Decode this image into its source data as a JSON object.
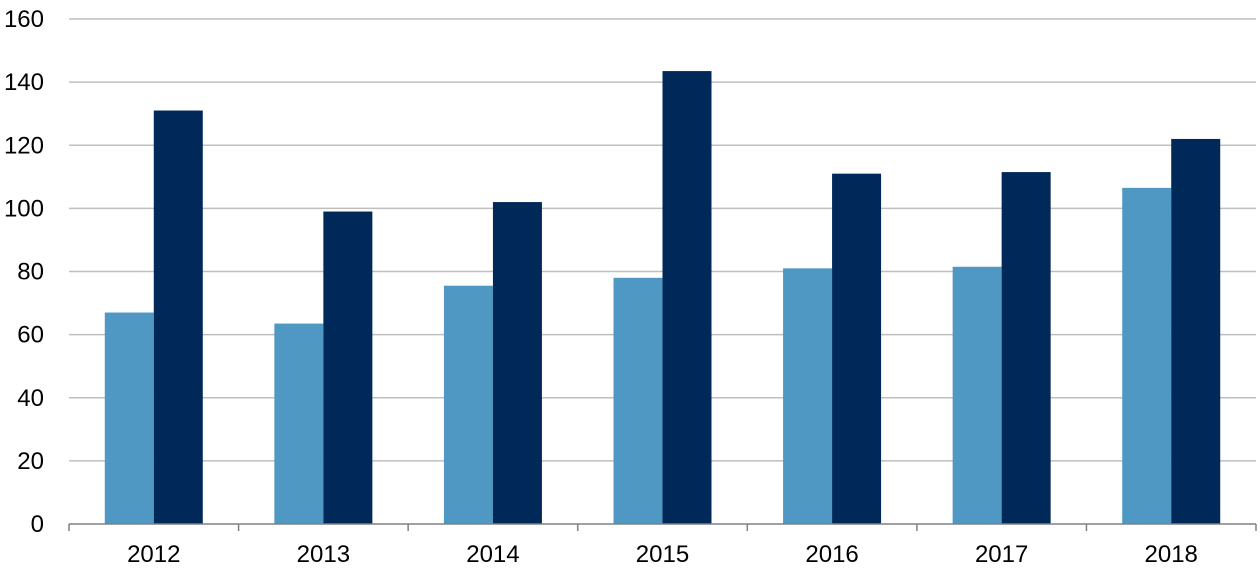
{
  "chart_data": {
    "type": "bar",
    "title": "",
    "xlabel": "",
    "ylabel": "",
    "categories": [
      "2012",
      "2013",
      "2014",
      "2015",
      "2016",
      "2017",
      "2018"
    ],
    "series": [
      {
        "values": [
          67,
          63.5,
          75.5,
          78,
          81,
          81.5,
          106.5
        ],
        "color": "#4f98c3"
      },
      {
        "values": [
          131,
          99,
          102,
          143.5,
          111,
          111.5,
          122
        ],
        "color": "#00295a"
      }
    ],
    "ylim": [
      0,
      160
    ],
    "yticks": [
      "0",
      "20",
      "40",
      "60",
      "80",
      "100",
      "120",
      "140",
      "160"
    ],
    "grid": true,
    "legend": "none"
  }
}
